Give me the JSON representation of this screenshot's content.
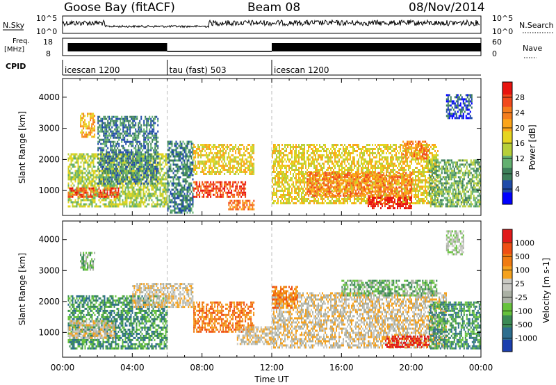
{
  "header": {
    "station": "Goose Bay (fitACF)",
    "beam": "Beam 08",
    "date": "08/Nov/2014"
  },
  "top_panels": {
    "nsky_label": "N.Sky",
    "nsky_ticks": [
      "10^5",
      "10^0"
    ],
    "nsearch_label": "N.Search",
    "nsearch_ticks": [
      "10^5",
      "10^0"
    ],
    "freq_label": [
      "Freq.",
      "[MHz]"
    ],
    "freq_ticks": [
      "18",
      "8"
    ],
    "nave_label": "Nave",
    "nave_ticks": [
      "60",
      "0"
    ],
    "cpid_label": "CPID",
    "cpid_segments": [
      {
        "label": "icescan 1200",
        "start_h": 0,
        "end_h": 6
      },
      {
        "label": "tau (fast) 503",
        "start_h": 6,
        "end_h": 12
      },
      {
        "label": "icescan 1200",
        "start_h": 12,
        "end_h": 24
      }
    ]
  },
  "axes": {
    "x_ticks": [
      "00:00",
      "04:00",
      "08:00",
      "12:00",
      "16:00",
      "20:00",
      "00:00"
    ],
    "x_label": "Time UT",
    "y_ticks": [
      "1000",
      "2000",
      "3000",
      "4000"
    ],
    "y_label": "Slant Range [km]"
  },
  "chart_data": [
    {
      "type": "heatmap",
      "x_label": "Time UT",
      "y_label": "Slant Range [km]",
      "x_range_hours": [
        0,
        24
      ],
      "y_range_km": [
        200,
        4600
      ],
      "colorbar": {
        "label": "Power [dB]",
        "ticks": [
          "28",
          "24",
          "20",
          "16",
          "12",
          "8",
          "4"
        ],
        "range": [
          0,
          32
        ],
        "colors": [
          "#0000ff",
          "#1f4aa8",
          "#3d7f5a",
          "#63b070",
          "#b7cf39",
          "#e6d521",
          "#fca51a",
          "#f57d1c",
          "#f24a1d",
          "#e8140f"
        ]
      },
      "regions": [
        {
          "t0": 0.3,
          "t1": 6.0,
          "r0": 500,
          "r1": 2200,
          "level": 4
        },
        {
          "t0": 0.3,
          "t1": 3.2,
          "r0": 800,
          "r1": 1100,
          "level": 8
        },
        {
          "t0": 1.0,
          "t1": 1.8,
          "r0": 2700,
          "r1": 3500,
          "level": 6
        },
        {
          "t0": 2.0,
          "t1": 5.5,
          "r0": 1200,
          "r1": 3400,
          "level": 2
        },
        {
          "t0": 6.0,
          "t1": 7.5,
          "r0": 300,
          "r1": 2600,
          "level": 2
        },
        {
          "t0": 7.5,
          "t1": 11.0,
          "r0": 1500,
          "r1": 2500,
          "level": 5
        },
        {
          "t0": 7.5,
          "t1": 10.5,
          "r0": 800,
          "r1": 1300,
          "level": 8
        },
        {
          "t0": 9.5,
          "t1": 11.0,
          "r0": 400,
          "r1": 700,
          "level": 7
        },
        {
          "t0": 12.0,
          "t1": 21.5,
          "r0": 600,
          "r1": 2500,
          "level": 5
        },
        {
          "t0": 14.0,
          "t1": 20.0,
          "r0": 800,
          "r1": 1600,
          "level": 7
        },
        {
          "t0": 17.5,
          "t1": 20.0,
          "r0": 400,
          "r1": 800,
          "level": 9
        },
        {
          "t0": 19.5,
          "t1": 21.0,
          "r0": 2000,
          "r1": 2600,
          "level": 7
        },
        {
          "t0": 21.0,
          "t1": 24.0,
          "r0": 500,
          "r1": 2000,
          "level": 3
        },
        {
          "t0": 22.0,
          "t1": 23.5,
          "r0": 3300,
          "r1": 4100,
          "level": 1
        }
      ]
    },
    {
      "type": "heatmap",
      "x_label": "Time UT",
      "y_label": "Slant Range [km]",
      "x_range_hours": [
        0,
        24
      ],
      "y_range_km": [
        200,
        4600
      ],
      "colorbar": {
        "label": "Velocity [m s-1]",
        "ticks": [
          "1000",
          "500",
          "100",
          "25",
          "-25",
          "-100",
          "-500",
          "-1000"
        ],
        "range": [
          -1200,
          1200
        ],
        "colors": [
          "#1b3fae",
          "#2d6e8e",
          "#3a8a55",
          "#66c23c",
          "#aab0a4",
          "#c9c9c4",
          "#f5a21f",
          "#f07b12",
          "#ef4f14",
          "#e11a1a"
        ]
      },
      "regions": [
        {
          "t0": 0.3,
          "t1": 6.0,
          "r0": 500,
          "r1": 2200,
          "level": 2
        },
        {
          "t0": 0.3,
          "t1": 3.0,
          "r0": 800,
          "r1": 1400,
          "level": 5
        },
        {
          "t0": 1.0,
          "t1": 1.8,
          "r0": 3000,
          "r1": 3600,
          "level": 3
        },
        {
          "t0": 4.0,
          "t1": 7.5,
          "r0": 1800,
          "r1": 2600,
          "level": 5
        },
        {
          "t0": 7.5,
          "t1": 11.0,
          "r0": 1000,
          "r1": 2000,
          "level": 7
        },
        {
          "t0": 10.0,
          "t1": 12.0,
          "r0": 600,
          "r1": 1200,
          "level": 5
        },
        {
          "t0": 12.0,
          "t1": 22.0,
          "r0": 500,
          "r1": 2300,
          "level": 5
        },
        {
          "t0": 12.0,
          "t1": 13.5,
          "r0": 1800,
          "r1": 2500,
          "level": 7
        },
        {
          "t0": 16.0,
          "t1": 21.5,
          "r0": 2200,
          "r1": 2700,
          "level": 3
        },
        {
          "t0": 18.5,
          "t1": 21.0,
          "r0": 500,
          "r1": 900,
          "level": 9
        },
        {
          "t0": 21.0,
          "t1": 24.0,
          "r0": 500,
          "r1": 2000,
          "level": 2
        },
        {
          "t0": 22.0,
          "t1": 23.0,
          "r0": 3500,
          "r1": 4300,
          "level": 4
        }
      ]
    }
  ]
}
